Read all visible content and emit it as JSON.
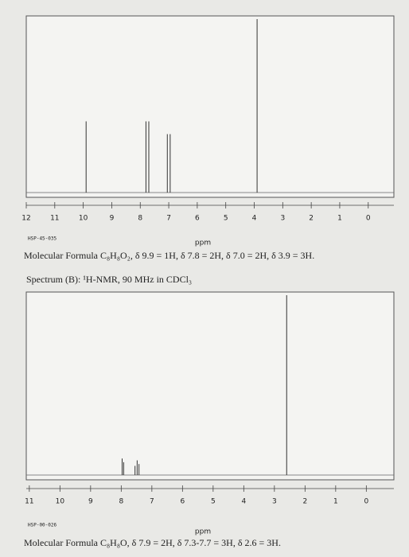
{
  "chart_data": [
    {
      "type": "spectrum",
      "x_label": "ppm",
      "annotation": "HSP-45-035",
      "caption": "Molecular Formula C₈H₈O₂, δ 9.9 = 1H, δ 7.8 = 2H, δ 7.0 = 2H, δ 3.9 = 3H.",
      "x": [
        9.9,
        7.8,
        7.7,
        7.05,
        6.95,
        3.9
      ],
      "values": [
        39,
        39,
        39,
        32,
        32,
        95
      ],
      "color": "#333333",
      "xlim": [
        12,
        -0.9
      ],
      "xticks": [
        12,
        11,
        10,
        9,
        8,
        7,
        6,
        5,
        4,
        3,
        2,
        1,
        0
      ]
    },
    {
      "type": "spectrum",
      "title": "Spectrum (B): ¹H-NMR, 90 MHz in CDCl₃",
      "x_label": "ppm",
      "annotation": "HSP-00-026",
      "caption": "Molecular Formula C₈H₈O, δ 7.9 = 2H, δ 7.3-7.7 = 3H, δ 2.6 = 3H.",
      "x": [
        7.97,
        7.92,
        7.55,
        7.48,
        7.42,
        2.6
      ],
      "values": [
        9,
        7,
        5,
        8,
        6,
        98
      ],
      "color": "#333333",
      "xlim": [
        11.1,
        -0.9
      ],
      "xticks": [
        11,
        10,
        9,
        8,
        7,
        6,
        5,
        4,
        3,
        2,
        1,
        0
      ]
    }
  ]
}
